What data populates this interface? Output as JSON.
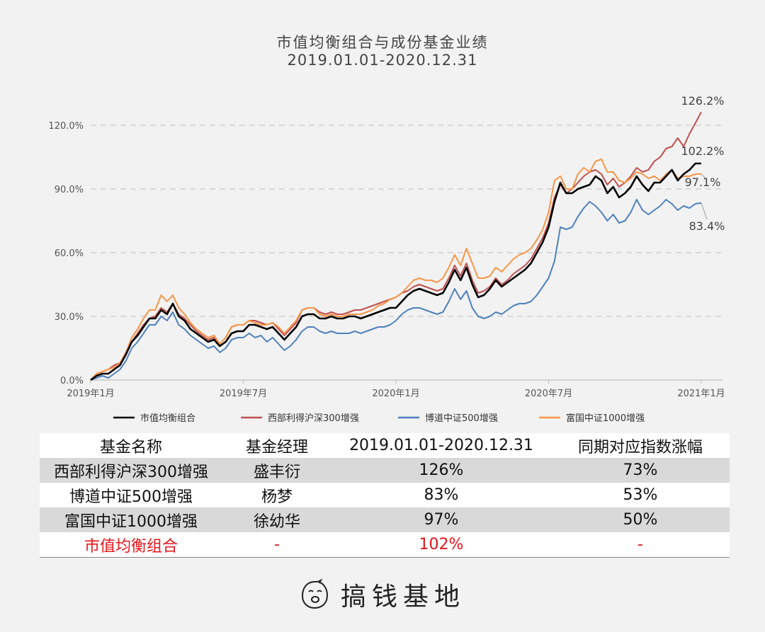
{
  "title": "市值均衡组合与成份基金业绩",
  "subtitle": "2019.01.01-2020.12.31",
  "chart_data": {
    "type": "line",
    "x_ticks": [
      "2019年1月",
      "2019年7月",
      "2020年1月",
      "2020年7月",
      "2021年1月"
    ],
    "x_tick_positions": [
      0,
      26,
      52,
      78,
      104
    ],
    "y_ticks": [
      "0.0%",
      "30.0%",
      "60.0%",
      "90.0%",
      "120.0%"
    ],
    "ylim": [
      0,
      130
    ],
    "gridlines": "dashed",
    "legend_position": "bottom",
    "series": [
      {
        "name": "市值均衡组合",
        "color": "#000000",
        "width": 2.6,
        "end_label": "102.2%",
        "values": [
          0,
          2,
          3,
          3,
          5,
          7,
          12,
          18,
          21,
          25,
          29,
          29,
          33,
          31,
          36,
          30,
          28,
          24,
          22,
          20,
          18,
          19,
          16,
          18,
          22,
          23,
          23,
          26,
          26,
          25,
          24,
          25,
          22,
          19,
          22,
          25,
          30,
          31,
          31,
          29,
          29,
          30,
          29,
          29,
          30,
          30,
          29,
          30,
          31,
          32,
          33,
          34,
          34,
          37,
          40,
          42,
          43,
          42,
          41,
          40,
          41,
          46,
          52,
          47,
          53,
          45,
          39,
          40,
          43,
          47,
          44,
          46,
          48,
          50,
          52,
          55,
          60,
          65,
          72,
          84,
          93,
          88,
          88,
          90,
          91,
          92,
          96,
          94,
          88,
          91,
          86,
          88,
          91,
          96,
          92,
          89,
          93,
          93,
          96,
          99,
          94,
          97,
          99,
          102,
          102
        ]
      },
      {
        "name": "西部利得沪深300增强",
        "color": "#c0504d",
        "width": 2.0,
        "end_label": "126.2%",
        "values": [
          0,
          3,
          4,
          5,
          7,
          8,
          13,
          18,
          22,
          26,
          29,
          30,
          34,
          32,
          36,
          31,
          29,
          26,
          23,
          21,
          19,
          20,
          17,
          20,
          25,
          26,
          26,
          28,
          28,
          27,
          26,
          27,
          24,
          21,
          24,
          27,
          33,
          34,
          34,
          32,
          31,
          32,
          31,
          31,
          32,
          33,
          33,
          34,
          35,
          36,
          37,
          38,
          39,
          41,
          42,
          44,
          45,
          44,
          43,
          42,
          43,
          48,
          54,
          49,
          55,
          47,
          41,
          42,
          44,
          48,
          45,
          47,
          50,
          52,
          54,
          57,
          62,
          67,
          74,
          86,
          92,
          88,
          90,
          93,
          96,
          98,
          99,
          97,
          92,
          95,
          91,
          93,
          96,
          100,
          98,
          99,
          103,
          105,
          109,
          110,
          114,
          110,
          116,
          121,
          126.2
        ]
      },
      {
        "name": "博道中证500增强",
        "color": "#4f81bd",
        "width": 2.0,
        "end_label": "83.4%",
        "values": [
          0,
          1,
          2,
          1,
          3,
          5,
          9,
          15,
          18,
          22,
          26,
          26,
          30,
          28,
          32,
          26,
          24,
          21,
          19,
          17,
          15,
          16,
          13,
          15,
          19,
          20,
          20,
          22,
          20,
          21,
          18,
          20,
          17,
          14,
          16,
          19,
          23,
          25,
          25,
          23,
          22,
          23,
          22,
          22,
          22,
          23,
          22,
          23,
          24,
          25,
          25,
          26,
          28,
          31,
          33,
          34,
          34,
          33,
          32,
          31,
          32,
          37,
          43,
          38,
          42,
          34,
          30,
          29,
          30,
          32,
          31,
          33,
          35,
          36,
          36,
          37,
          40,
          44,
          48,
          56,
          72,
          71,
          72,
          77,
          81,
          84,
          82,
          79,
          75,
          78,
          74,
          75,
          79,
          85,
          80,
          78,
          80,
          82,
          85,
          83,
          80,
          82,
          81,
          83,
          83.4
        ]
      },
      {
        "name": "富国中证1000增强",
        "color": "#f79646",
        "width": 2.0,
        "end_label": "97.1%",
        "values": [
          0,
          3,
          4,
          5,
          6,
          8,
          13,
          20,
          24,
          29,
          33,
          33,
          40,
          37,
          40,
          34,
          31,
          27,
          24,
          22,
          20,
          21,
          17,
          20,
          25,
          26,
          26,
          28,
          27,
          26,
          26,
          27,
          25,
          22,
          25,
          28,
          33,
          34,
          34,
          31,
          30,
          31,
          30,
          30,
          31,
          31,
          31,
          32,
          33,
          35,
          36,
          38,
          39,
          41,
          44,
          47,
          48,
          47,
          47,
          46,
          48,
          53,
          59,
          54,
          62,
          55,
          48,
          48,
          49,
          53,
          51,
          54,
          57,
          59,
          60,
          62,
          66,
          71,
          79,
          94,
          96,
          90,
          90,
          97,
          100,
          98,
          103,
          104,
          98,
          98,
          94,
          93,
          95,
          98,
          97,
          95,
          96,
          94,
          97,
          99,
          95,
          96,
          96,
          97,
          97.1
        ]
      }
    ]
  },
  "table": {
    "headers": [
      "基金名称",
      "基金经理",
      "2019.01.01-2020.12.31",
      "同期对应指数涨幅"
    ],
    "rows": [
      [
        "西部利得沪深300增强",
        "盛丰衍",
        "126%",
        "73%"
      ],
      [
        "博道中证500增强",
        "杨梦",
        "83%",
        "53%"
      ],
      [
        "富国中证1000增强",
        "徐幼华",
        "97%",
        "50%"
      ],
      [
        "市值均衡组合",
        "-",
        "102%",
        "-"
      ]
    ]
  },
  "brand": {
    "name": "搞钱基地",
    "icon": "face-logo-icon"
  }
}
